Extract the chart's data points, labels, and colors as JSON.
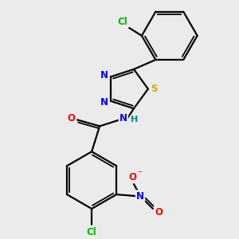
{
  "bg_color": "#ebebeb",
  "atom_colors": {
    "C": "#000000",
    "N": "#0000ff",
    "O": "#ff0000",
    "S": "#ccaa00",
    "Cl": "#00bb00",
    "H": "#008888",
    "bond": "#000000"
  },
  "scale": 1.0
}
